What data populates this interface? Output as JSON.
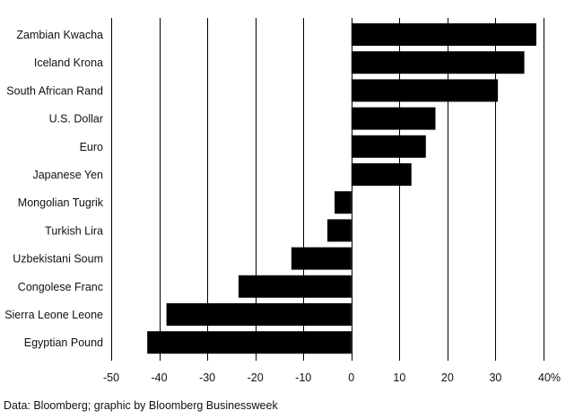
{
  "chart_data": {
    "type": "bar",
    "orientation": "horizontal",
    "categories": [
      "Zambian Kwacha",
      "Iceland Krona",
      "South African Rand",
      "U.S. Dollar",
      "Euro",
      "Japanese Yen",
      "Mongolian Tugrik",
      "Turkish Lira",
      "Uzbekistani Soum",
      "Congolese Franc",
      "Sierra Leone Leone",
      "Egyptian Pound"
    ],
    "values": [
      38.5,
      36,
      30.5,
      17.5,
      15.5,
      12.5,
      -3.5,
      -5,
      -12.5,
      -23.5,
      -38.5,
      -42.5
    ],
    "xlim": [
      -50,
      40
    ],
    "ticks": [
      -50,
      -40,
      -30,
      -20,
      -10,
      0,
      10,
      20,
      30,
      40
    ],
    "tick_labels": [
      "-50",
      "-40",
      "-30",
      "-20",
      "-10",
      "0",
      "10",
      "20",
      "30",
      "40%"
    ],
    "grid": true,
    "bar_color": "#000000",
    "grid_color": "#000000"
  },
  "source": "Data: Bloomberg; graphic by Bloomberg Businessweek"
}
